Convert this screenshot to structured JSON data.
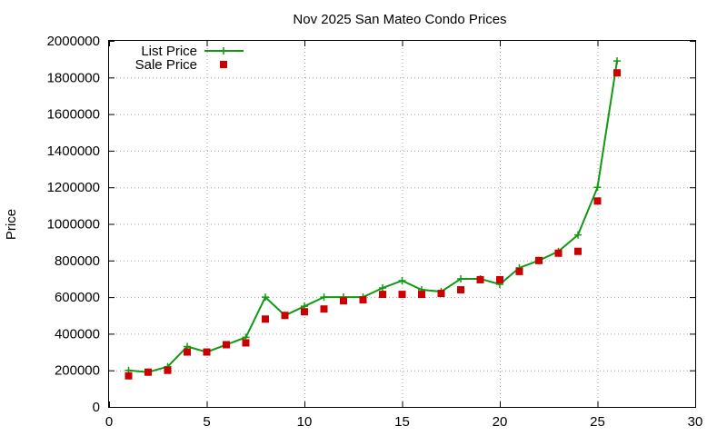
{
  "chart_data": {
    "type": "line",
    "title": "Nov 2025 San Mateo Condo Prices",
    "xlabel": "",
    "ylabel": "Price",
    "xlim": [
      0,
      30
    ],
    "ylim": [
      0,
      2000000
    ],
    "xticks": [
      0,
      5,
      10,
      15,
      20,
      25,
      30
    ],
    "yticks": [
      0,
      200000,
      400000,
      600000,
      800000,
      1000000,
      1200000,
      1400000,
      1600000,
      1800000,
      2000000
    ],
    "grid": true,
    "legend_position": "top-left",
    "series": [
      {
        "name": "List Price",
        "style": "line-plus",
        "color": "#119911",
        "x": [
          1,
          2,
          3,
          4,
          5,
          6,
          7,
          8,
          9,
          10,
          11,
          12,
          13,
          14,
          15,
          16,
          17,
          18,
          19,
          20,
          21,
          22,
          23,
          24,
          25,
          26
        ],
        "y": [
          200000,
          190000,
          220000,
          330000,
          300000,
          340000,
          380000,
          600000,
          500000,
          550000,
          600000,
          600000,
          600000,
          650000,
          690000,
          640000,
          630000,
          700000,
          700000,
          670000,
          760000,
          800000,
          850000,
          940000,
          1200000,
          1890000
        ]
      },
      {
        "name": "Sale Price",
        "style": "square-points",
        "color": "#cc0000",
        "x": [
          1,
          2,
          3,
          4,
          5,
          6,
          7,
          8,
          9,
          10,
          11,
          12,
          13,
          14,
          15,
          16,
          17,
          18,
          19,
          20,
          21,
          22,
          23,
          24,
          25,
          26
        ],
        "y": [
          170000,
          190000,
          200000,
          300000,
          300000,
          340000,
          350000,
          480000,
          500000,
          520000,
          535000,
          580000,
          585000,
          615000,
          615000,
          615000,
          620000,
          640000,
          695000,
          695000,
          740000,
          800000,
          840000,
          850000,
          1125000,
          1825000
        ]
      }
    ]
  }
}
